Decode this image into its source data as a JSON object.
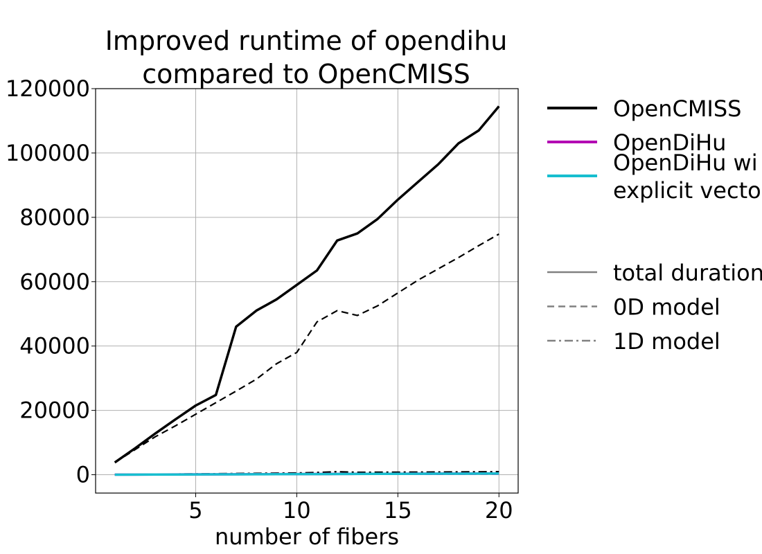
{
  "chart_data": {
    "type": "line",
    "title_lines": [
      "Improved runtime of opendihu",
      "compared to OpenCMISS"
    ],
    "xlabel": "number of fibers",
    "ylabel": "",
    "xlim": [
      0.05,
      20.95
    ],
    "ylim": [
      -5700,
      120000
    ],
    "xticks": [
      5,
      10,
      15,
      20
    ],
    "yticks": [
      0,
      20000,
      40000,
      60000,
      80000,
      100000,
      120000
    ],
    "grid": true,
    "legend_position": "right-outside",
    "x": [
      1,
      2,
      3,
      4,
      5,
      6,
      7,
      8,
      9,
      10,
      11,
      12,
      13,
      14,
      15,
      16,
      17,
      18,
      19,
      20
    ],
    "series": [
      {
        "name": "OpenCMISS total duration",
        "implementation": "OpenCMISS",
        "component": "total duration",
        "color": "#000000",
        "dash": "solid",
        "width": "thick",
        "values": [
          3800,
          8200,
          12800,
          17200,
          21500,
          24800,
          46000,
          51000,
          54500,
          59000,
          63500,
          72800,
          75000,
          79500,
          85500,
          91000,
          96500,
          103000,
          107000,
          114500
        ]
      },
      {
        "name": "OpenCMISS 0D model",
        "implementation": "OpenCMISS",
        "component": "0D model",
        "color": "#000000",
        "dash": "dashed",
        "width": "thin",
        "values": [
          3800,
          7800,
          11800,
          15200,
          18800,
          22400,
          26000,
          29700,
          34500,
          38000,
          47500,
          51000,
          49500,
          52500,
          56500,
          60500,
          64000,
          67500,
          71200,
          74800
        ]
      },
      {
        "name": "OpenCMISS 1D model",
        "implementation": "OpenCMISS",
        "component": "1D model",
        "color": "#000000",
        "dash": "dashdot",
        "width": "thin",
        "values": [
          50,
          100,
          150,
          200,
          260,
          320,
          380,
          430,
          490,
          540,
          700,
          950,
          750,
          780,
          800,
          820,
          840,
          870,
          900,
          950
        ]
      },
      {
        "name": "OpenDiHu total duration",
        "implementation": "OpenDiHu",
        "component": "total duration",
        "color": "#b30cb3",
        "dash": "solid",
        "width": "thick",
        "values": [
          20,
          40,
          60,
          80,
          100,
          120,
          140,
          160,
          180,
          200,
          220,
          240,
          260,
          280,
          300,
          320,
          340,
          360,
          380,
          400
        ]
      },
      {
        "name": "OpenDiHu 0D model",
        "implementation": "OpenDiHu",
        "component": "0D model",
        "color": "#b30cb3",
        "dash": "dashed",
        "width": "thin",
        "values": [
          10,
          20,
          30,
          40,
          50,
          60,
          70,
          80,
          90,
          100,
          110,
          120,
          130,
          140,
          150,
          160,
          170,
          180,
          190,
          200
        ]
      },
      {
        "name": "OpenDiHu with explicit vectorization total duration",
        "implementation": "OpenDiHu with explicit vectorization",
        "component": "total duration",
        "color": "#17becf",
        "dash": "solid",
        "width": "thick",
        "values": [
          15,
          30,
          45,
          60,
          80,
          100,
          120,
          140,
          160,
          180,
          200,
          220,
          240,
          260,
          280,
          300,
          320,
          340,
          360,
          380
        ]
      }
    ],
    "legend": {
      "implementations": [
        {
          "label_lines": [
            "OpenCMISS"
          ],
          "color": "#000000"
        },
        {
          "label_lines": [
            "OpenDiHu"
          ],
          "color": "#b30cb3"
        },
        {
          "label_lines": [
            "OpenDiHu wi",
            "explicit vecto"
          ],
          "color": "#17becf"
        }
      ],
      "styles": [
        {
          "label": "total duration",
          "dash": "solid"
        },
        {
          "label": "0D model",
          "dash": "dashed"
        },
        {
          "label": "1D model",
          "dash": "dashdot"
        }
      ]
    }
  }
}
